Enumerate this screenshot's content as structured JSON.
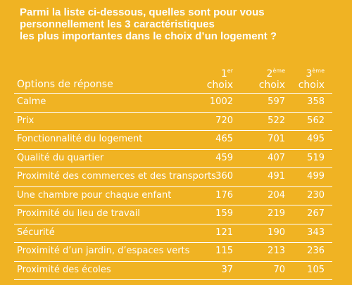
{
  "question": {
    "line1": "Parmi la liste ci-dessous, quelles sont pour vous",
    "line2": "personnellement les 3 caractéristiques",
    "line3": "les plus importantes dans le choix d’un logement ?"
  },
  "table": {
    "header": {
      "options_label": "Options de réponse",
      "col1_num": "1",
      "col1_sup": "er",
      "col1_word": "choix",
      "col2_num": "2",
      "col2_sup": "ème",
      "col2_word": "choix",
      "col3_num": "3",
      "col3_sup": "ème",
      "col3_word": "choix"
    },
    "rows": [
      {
        "label": "Calme",
        "c1": "1002",
        "c2": "597",
        "c3": "358"
      },
      {
        "label": "Prix",
        "c1": "720",
        "c2": "522",
        "c3": "562"
      },
      {
        "label": "Fonctionnalité du logement",
        "c1": "465",
        "c2": "701",
        "c3": "495"
      },
      {
        "label": "Qualité du quartier",
        "c1": "459",
        "c2": "407",
        "c3": "519"
      },
      {
        "label": "Proximité des commerces et des transports",
        "c1": "360",
        "c2": "491",
        "c3": "499"
      },
      {
        "label": "Une chambre pour chaque enfant",
        "c1": "176",
        "c2": "204",
        "c3": "230"
      },
      {
        "label": "Proximité du lieu de travail",
        "c1": "159",
        "c2": "219",
        "c3": "267"
      },
      {
        "label": "Sécurité",
        "c1": "121",
        "c2": "190",
        "c3": "343"
      },
      {
        "label": "Proximité d’un jardin, d’espaces verts",
        "c1": "115",
        "c2": "213",
        "c3": "236"
      },
      {
        "label": "Proximité des écoles",
        "c1": "37",
        "c2": "70",
        "c3": "105"
      }
    ]
  },
  "colors": {
    "background": "#f0b323",
    "text": "#ffffff"
  }
}
